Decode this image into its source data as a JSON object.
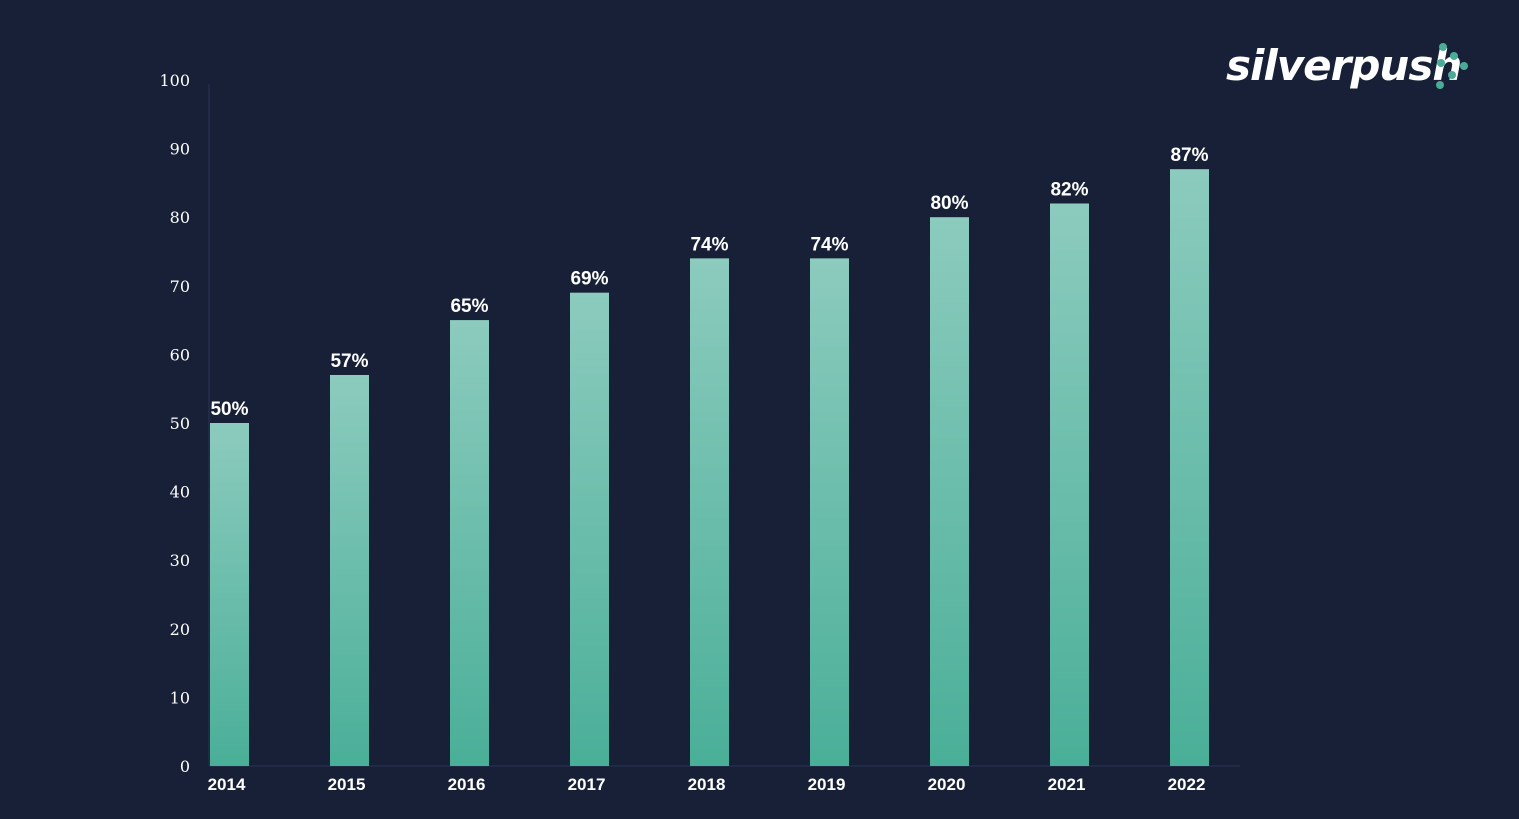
{
  "brand": {
    "name": "silverpush",
    "dot_color": "#4aab97"
  },
  "colors": {
    "background": "#172036",
    "bar_top": "#8ccbbe",
    "bar_bottom": "#4aaf98",
    "axis_text": "#ffffff",
    "label_text": "#ffffff",
    "axis_line": "#2a3552"
  },
  "chart_data": {
    "type": "bar",
    "categories": [
      "2014",
      "2015",
      "2016",
      "2017",
      "2018",
      "2019",
      "2020",
      "2021",
      "2022"
    ],
    "values": [
      50,
      57,
      65,
      69,
      74,
      74,
      80,
      82,
      87
    ],
    "data_labels": [
      "50%",
      "57%",
      "65%",
      "69%",
      "74%",
      "74%",
      "80%",
      "82%",
      "87%"
    ],
    "ylim": [
      0,
      100
    ],
    "yticks": [
      "0",
      "10",
      "20",
      "30",
      "40",
      "50",
      "60",
      "70",
      "80",
      "90",
      "100"
    ],
    "grid": false,
    "legend": "none"
  }
}
